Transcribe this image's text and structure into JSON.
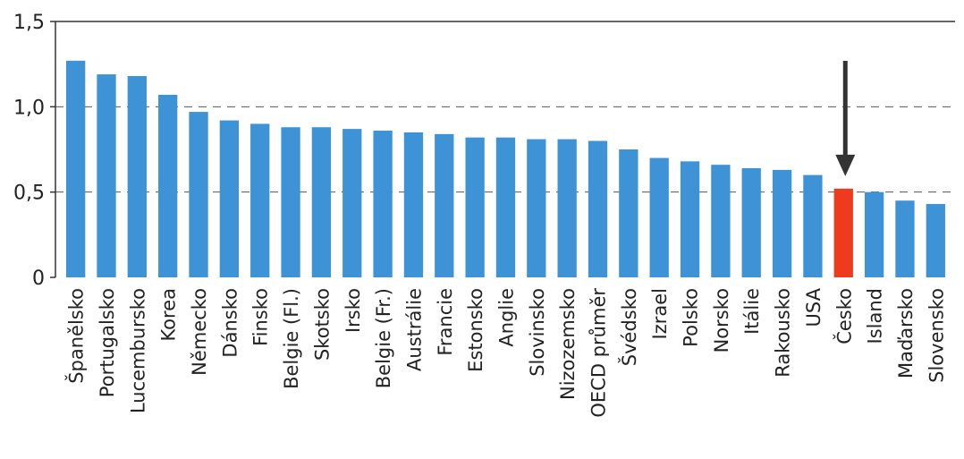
{
  "chart_data": {
    "type": "bar",
    "title": "",
    "xlabel": "",
    "ylabel": "",
    "ylim": [
      0,
      1.5
    ],
    "yticks": [
      {
        "value": 0,
        "label": "0"
      },
      {
        "value": 0.5,
        "label": "0,5"
      },
      {
        "value": 1.0,
        "label": "1,0"
      },
      {
        "value": 1.5,
        "label": "1,5"
      }
    ],
    "grid": "dashed horizontal at 0.5 and 1.0",
    "highlight_category": "Česko",
    "annotation": "arrow pointing down at Česko",
    "colors": {
      "bar": "#3d93d6",
      "highlight": "#ee3a1e",
      "arrow": "#333333"
    },
    "categories": [
      "Španělsko",
      "Portugalsko",
      "Lucembursko",
      "Korea",
      "Německo",
      "Dánsko",
      "Finsko",
      "Belgie (Fl.)",
      "Skotsko",
      "Irsko",
      "Belgie (Fr.)",
      "Austrálie",
      "Francie",
      "Estonsko",
      "Anglie",
      "Slovinsko",
      "Nizozemsko",
      "OECD průměr",
      "Švédsko",
      "Izrael",
      "Polsko",
      "Norsko",
      "Itálie",
      "Rakousko",
      "USA",
      "Česko",
      "Island",
      "Maďarsko",
      "Slovensko"
    ],
    "values": [
      1.27,
      1.19,
      1.18,
      1.07,
      0.97,
      0.92,
      0.9,
      0.88,
      0.88,
      0.87,
      0.86,
      0.85,
      0.84,
      0.82,
      0.82,
      0.81,
      0.81,
      0.8,
      0.75,
      0.7,
      0.68,
      0.66,
      0.64,
      0.63,
      0.6,
      0.52,
      0.5,
      0.45,
      0.43
    ]
  }
}
